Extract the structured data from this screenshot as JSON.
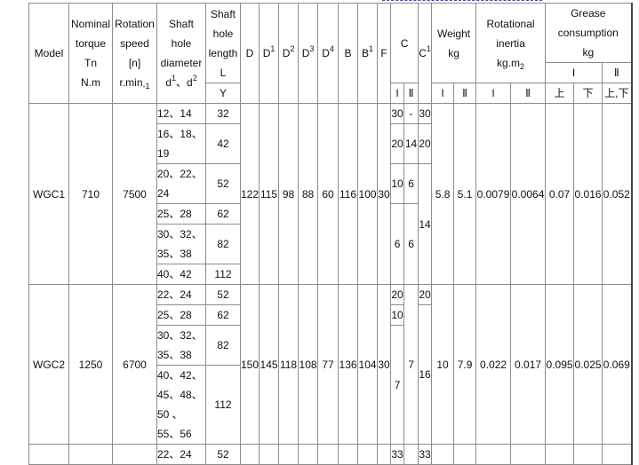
{
  "header": {
    "model": "Model",
    "torque": [
      "Nominal",
      "torque",
      "Tn",
      "N.m"
    ],
    "speed": [
      "Rotation",
      "speed",
      "[n]",
      "r.min",
      "-1"
    ],
    "diameter": [
      "Shaft",
      "hole",
      "diameter",
      "d",
      "1",
      "、",
      "d",
      "2"
    ],
    "length": [
      "Shaft",
      "hole",
      "length",
      "L"
    ],
    "length_sub": "Y",
    "D": "D",
    "D1": [
      "D",
      "1"
    ],
    "D2": [
      "D",
      "2"
    ],
    "D3": [
      "D",
      "3"
    ],
    "D4": [
      "D",
      "4"
    ],
    "B": "B",
    "B1": [
      "B",
      "1"
    ],
    "F": "F",
    "C": "C",
    "C1": [
      "C",
      "1"
    ],
    "weight": [
      "Weight",
      "kg"
    ],
    "inertia": [
      "Rotational",
      "inertia",
      "kg.m",
      "2"
    ],
    "grease": [
      "Grease",
      "consumption",
      "kg"
    ],
    "I": "I",
    "II": "Ⅱ",
    "upper": "上",
    "lower": "下",
    "upper_lower": "上,下"
  },
  "models": [
    {
      "model": "WGC1",
      "torque": "710",
      "speed": "7500",
      "rows": [
        {
          "d": "12、14",
          "L": "32"
        },
        {
          "d": "16、18、19",
          "L": "42"
        },
        {
          "d": "20、22、24",
          "L": "52"
        },
        {
          "d": "25、28",
          "L": "62"
        },
        {
          "d": "30、32、35、38",
          "L": "82"
        },
        {
          "d": "40、42",
          "L": "112"
        }
      ],
      "D": "122",
      "D1": "115",
      "D2": "98",
      "D3": "88",
      "D4": "60",
      "B": "116",
      "B1": "100",
      "F": "30",
      "C_I": [
        "30",
        "20",
        "10",
        "6"
      ],
      "C_II": [
        "-",
        "14",
        "6",
        "6"
      ],
      "C1": [
        "30",
        "20",
        "14"
      ],
      "weight_I": "5.8",
      "weight_II": "5.1",
      "inertia_I": "0.0079",
      "inertia_II": "0.0064",
      "grease_I_upper": "0.07",
      "grease_I_lower": "0.016",
      "grease_II": "0.052"
    },
    {
      "model": "WGC2",
      "torque": "1250",
      "speed": "6700",
      "rows": [
        {
          "d": "22、24",
          "L": "52"
        },
        {
          "d": "25、28",
          "L": "62"
        },
        {
          "d": "30、32、35、38",
          "L": "82"
        },
        {
          "d": "40、42、45、48、50 、55、56",
          "L": "112"
        }
      ],
      "D": "150",
      "D1": "145",
      "D2": "118",
      "D3": "108",
      "D4": "77",
      "B": "136",
      "B1": "104",
      "F": "30",
      "C_I": [
        "20",
        "10",
        "7"
      ],
      "C_II": [
        "7"
      ],
      "C1": [
        "20",
        "16"
      ],
      "weight_I": "10",
      "weight_II": "7.9",
      "inertia_I": "0.022",
      "inertia_II": "0.017",
      "grease_I_upper": "0.095",
      "grease_I_lower": "0.025",
      "grease_II": "0.069"
    },
    {
      "rows": [
        {
          "d": "22、24",
          "L": "52"
        }
      ],
      "C_I": [
        "33"
      ],
      "C1": [
        "33"
      ]
    }
  ]
}
